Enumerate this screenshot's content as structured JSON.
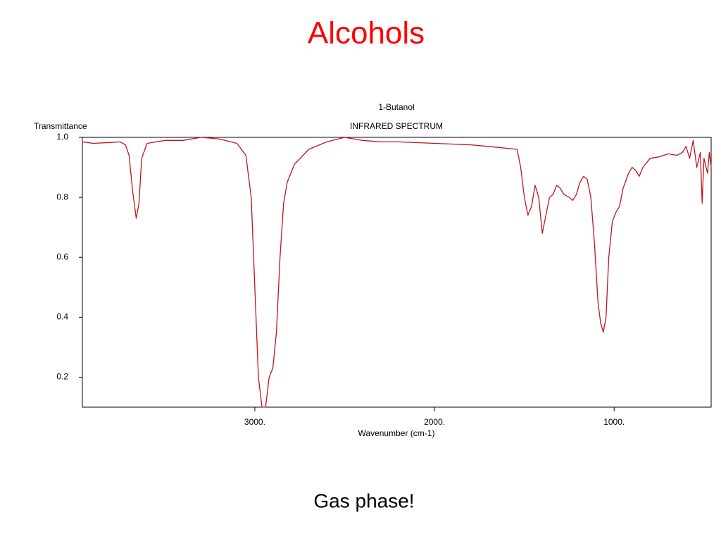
{
  "slide": {
    "title": "Alcohols",
    "caption": "Gas phase!"
  },
  "chart_data": {
    "type": "line",
    "title": "1-Butanol",
    "subtitle": "INFRARED SPECTRUM",
    "y_label": "Transmittance",
    "x_label": "Wavenumber (cm-1)",
    "x": [
      3960,
      3900,
      3800,
      3750,
      3720,
      3700,
      3680,
      3660,
      3645,
      3630,
      3600,
      3500,
      3400,
      3300,
      3200,
      3100,
      3050,
      3020,
      3000,
      2980,
      2960,
      2940,
      2920,
      2900,
      2880,
      2860,
      2840,
      2820,
      2780,
      2700,
      2600,
      2500,
      2400,
      2300,
      2200,
      2000,
      1800,
      1700,
      1540,
      1520,
      1500,
      1480,
      1460,
      1440,
      1420,
      1400,
      1380,
      1360,
      1340,
      1320,
      1300,
      1280,
      1250,
      1230,
      1210,
      1190,
      1170,
      1150,
      1130,
      1110,
      1090,
      1075,
      1060,
      1045,
      1030,
      1010,
      990,
      970,
      950,
      920,
      900,
      880,
      860,
      840,
      800,
      750,
      700,
      650,
      620,
      600,
      580,
      560,
      540,
      520,
      510,
      500,
      480,
      470,
      460
    ],
    "series": [
      {
        "name": "1-Butanol",
        "color": "#c0141c",
        "values": [
          0.985,
          0.98,
          0.983,
          0.985,
          0.975,
          0.94,
          0.82,
          0.73,
          0.78,
          0.93,
          0.98,
          0.99,
          0.99,
          1.0,
          0.995,
          0.98,
          0.94,
          0.8,
          0.5,
          0.2,
          0.1,
          0.1,
          0.2,
          0.23,
          0.35,
          0.6,
          0.78,
          0.85,
          0.91,
          0.96,
          0.985,
          1.0,
          0.99,
          0.985,
          0.985,
          0.98,
          0.975,
          0.97,
          0.96,
          0.9,
          0.8,
          0.74,
          0.77,
          0.84,
          0.8,
          0.68,
          0.74,
          0.8,
          0.81,
          0.84,
          0.83,
          0.81,
          0.8,
          0.79,
          0.81,
          0.85,
          0.87,
          0.86,
          0.8,
          0.65,
          0.45,
          0.38,
          0.35,
          0.4,
          0.6,
          0.72,
          0.75,
          0.77,
          0.83,
          0.88,
          0.9,
          0.89,
          0.87,
          0.9,
          0.93,
          0.935,
          0.945,
          0.94,
          0.95,
          0.97,
          0.93,
          0.99,
          0.9,
          0.95,
          0.78,
          0.93,
          0.88,
          0.95,
          0.9
        ]
      }
    ],
    "xlim": [
      3960,
      460
    ],
    "ylim": [
      0.1,
      1.0
    ],
    "xticks": [
      {
        "value": 3000,
        "label": "3000."
      },
      {
        "value": 2000,
        "label": "2000."
      },
      {
        "value": 1000,
        "label": "1000."
      }
    ],
    "yticks": [
      {
        "value": 1,
        "label": "1.0"
      },
      0.8,
      0.6,
      0.4,
      0.2
    ],
    "grid": false
  }
}
